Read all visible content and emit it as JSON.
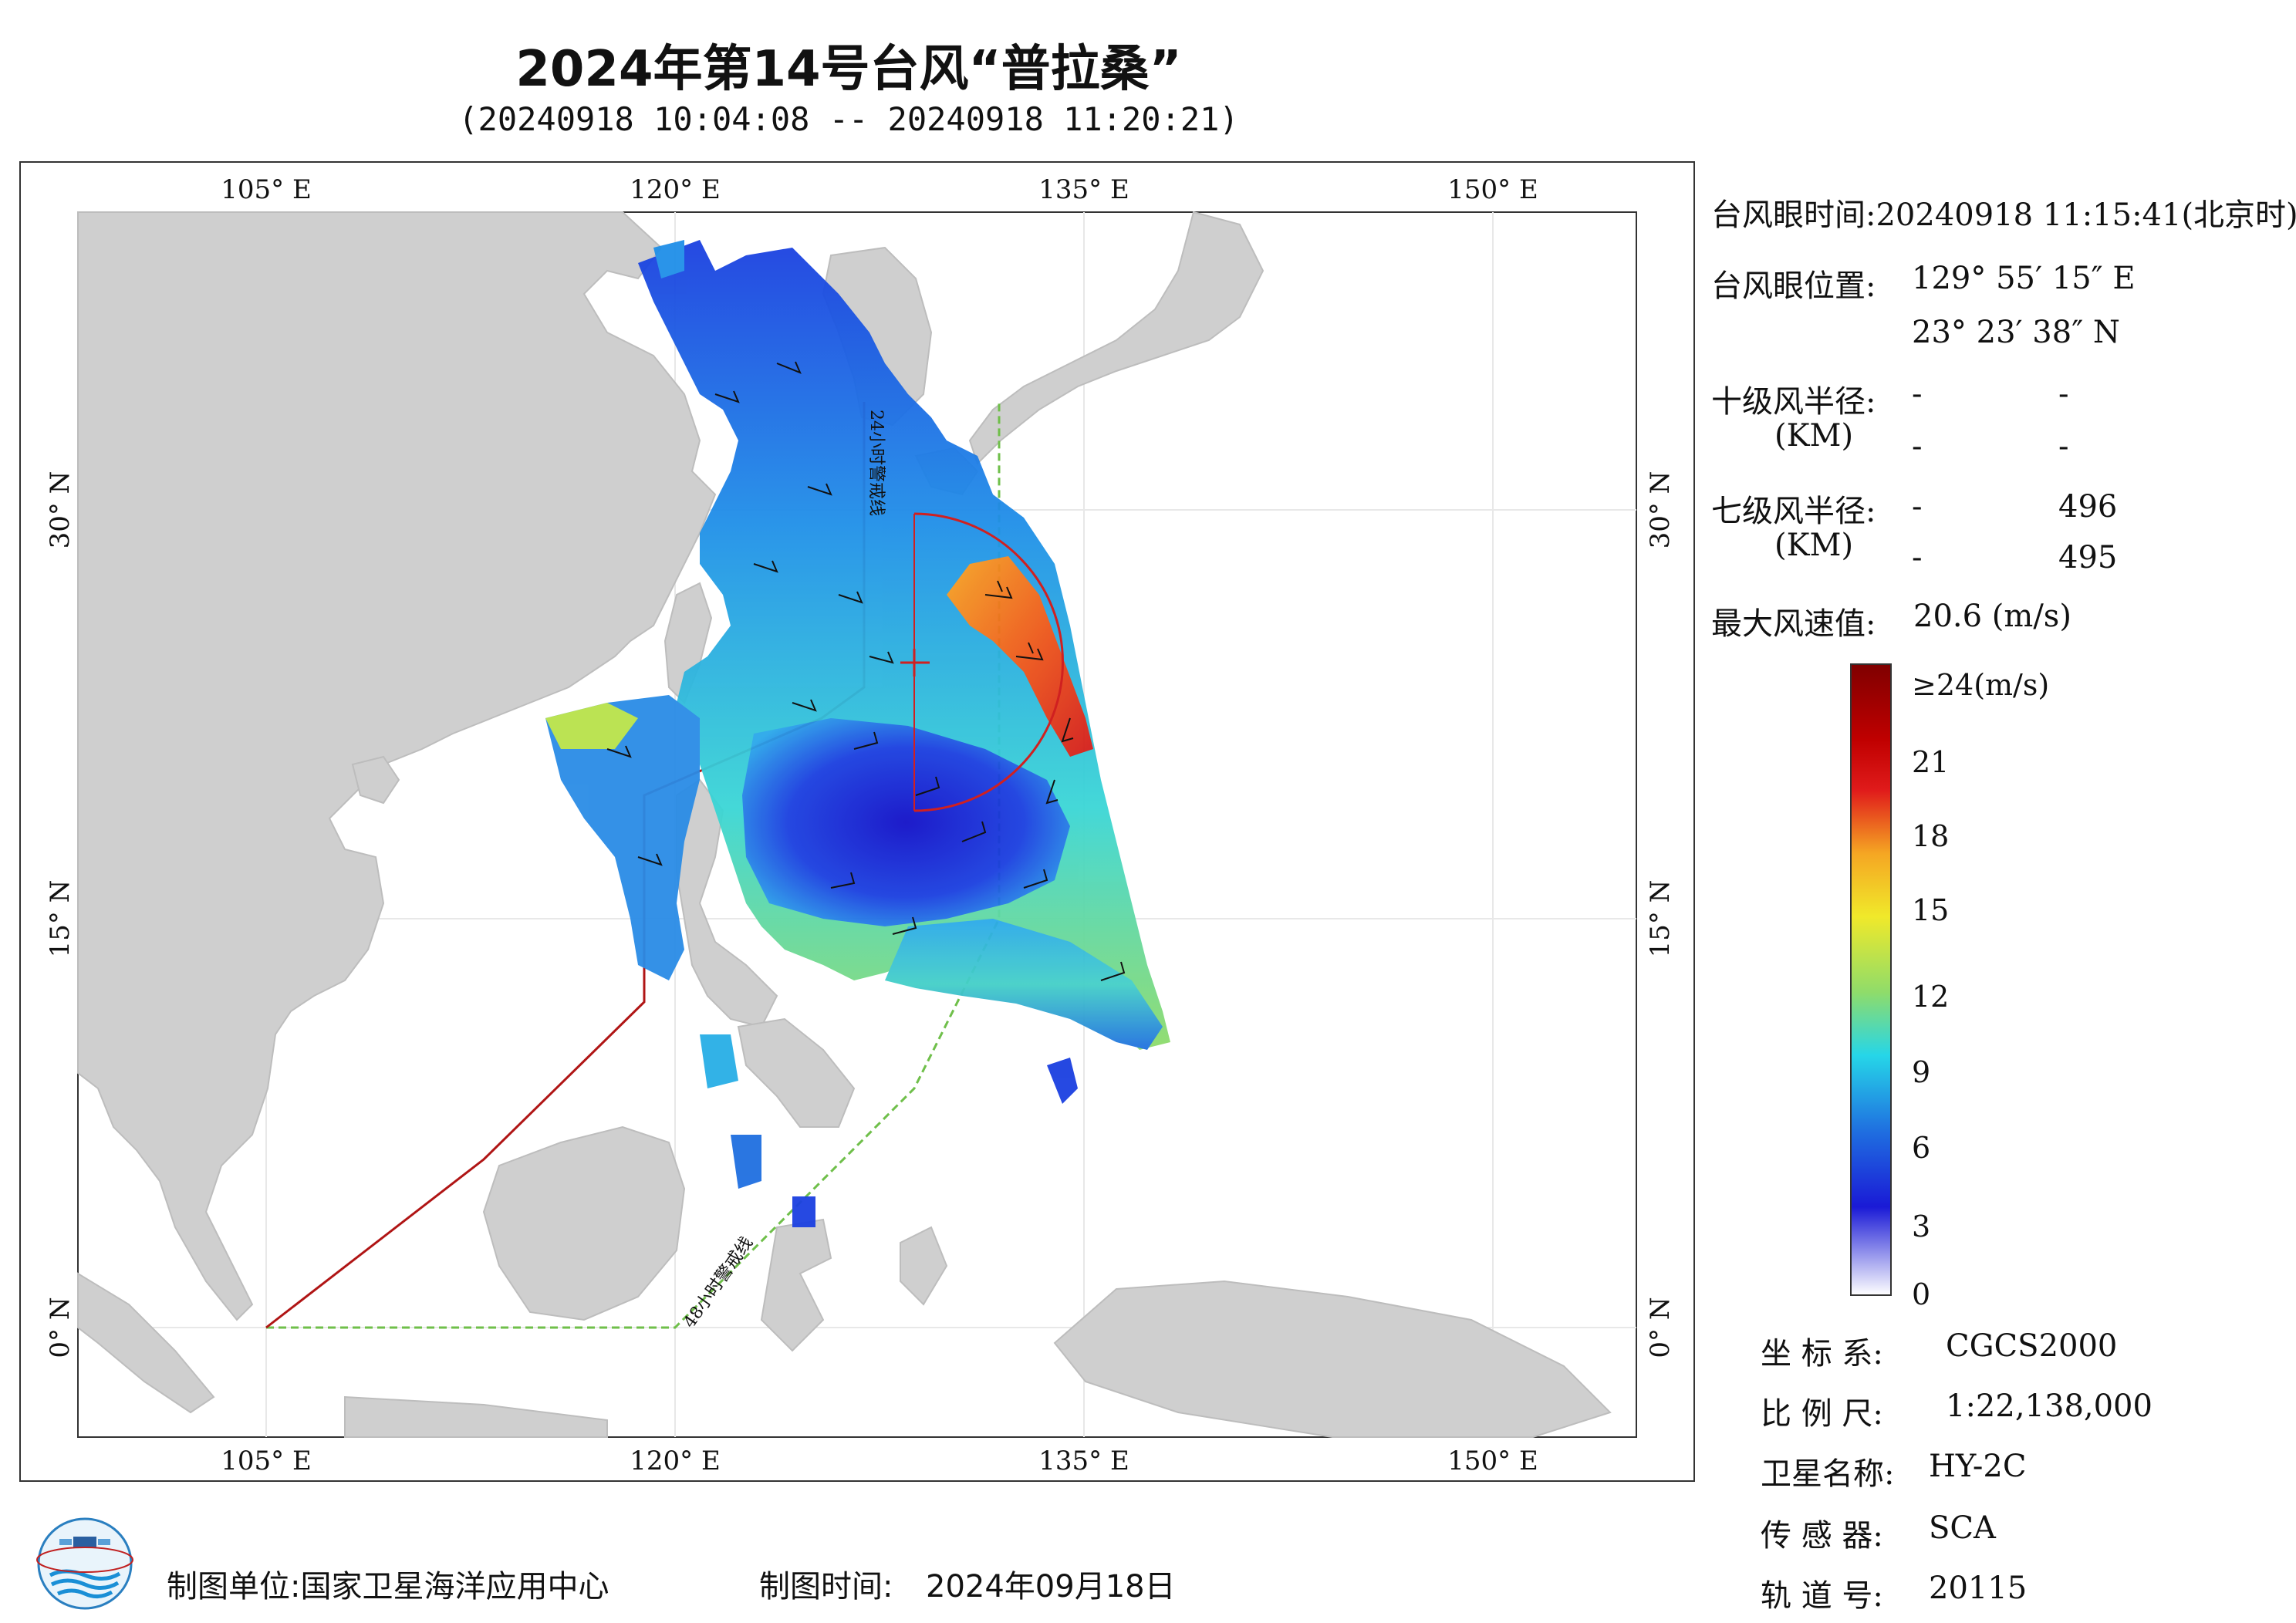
{
  "title": "2024年第14号台风“普拉桑”",
  "subtitle": "(20240918 10:04:08 -- 20240918 11:20:21)",
  "map": {
    "top_lon_labels": [
      "105° E",
      "120° E",
      "135° E",
      "150° E"
    ],
    "bottom_lon_labels": [
      "105° E",
      "120° E",
      "135° E",
      "150° E"
    ],
    "left_lat_labels": [
      "30° N",
      "15° N",
      "0° N"
    ],
    "right_lat_labels": [
      "30° N",
      "15° N",
      "0° N"
    ],
    "line_24h": "24小时警戒线",
    "line_48h": "48小时警戒线",
    "colors": {
      "land": "#cfcfcf",
      "sea": "#ffffff",
      "line_24h": "#b01515",
      "line_48h": "#6fbf4a",
      "wind_radius": "#d02020"
    }
  },
  "info": {
    "eye_time_label": "台风眼时间:",
    "eye_time_value": "20240918 11:15:41(北京时)",
    "eye_pos_label": "台风眼位置:",
    "eye_lon": "129° 55′ 15″ E",
    "eye_lat": "23° 23′ 38″ N",
    "r10_label": "十级风半径:",
    "r10_unit": "(KM)",
    "r10_values": [
      "-",
      "-",
      "-",
      "-"
    ],
    "r7_label": "七级风半径:",
    "r7_unit": "(KM)",
    "r7_values": [
      "-",
      "496",
      "-",
      "495"
    ],
    "max_wind_label": "最大风速值:",
    "max_wind_value": "20.6 (m/s)"
  },
  "colorbar": {
    "labels": [
      "≥24(m/s)",
      "21",
      "18",
      "15",
      "12",
      "9",
      "6",
      "3",
      "0"
    ],
    "colors": [
      "#7f0000",
      "#e01b1b",
      "#f5a623",
      "#f0e92a",
      "#8fdc6a",
      "#26d6e8",
      "#1f6fe0",
      "#1a1ad6",
      "#ffffff"
    ]
  },
  "meta": {
    "crs_label": "坐 标 系:",
    "crs_value": "CGCS2000",
    "scale_label": "比 例 尺:",
    "scale_value": "1:22,138,000",
    "satellite_label": "卫星名称:",
    "satellite_value": "HY-2C",
    "sensor_label": "传 感 器:",
    "sensor_value": "SCA",
    "orbit_label": "轨 道 号:",
    "orbit_value": "20115"
  },
  "footer": {
    "producer": "制图单位:国家卫星海洋应用中心",
    "date_label": "制图时间:",
    "date_value": "2024年09月18日"
  }
}
